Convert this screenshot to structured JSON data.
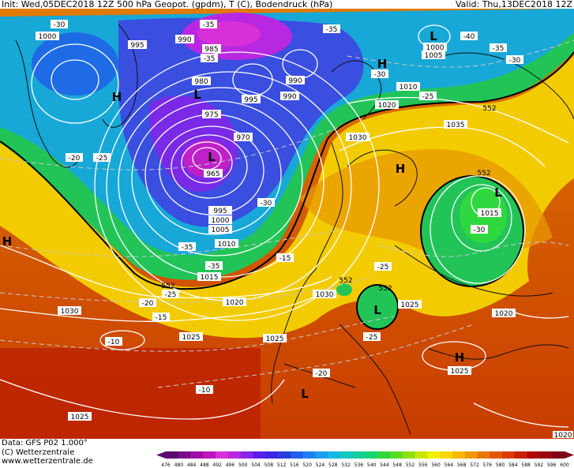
{
  "header": {
    "left": "Init: Wed,05DEC2018 12Z 500 hPa Geopot. (gpdm), T (C), Bodendruck (hPa)",
    "right": "Valid: Thu,13DEC2018 12Z"
  },
  "credits": {
    "line1": "Data: GFS P02 1.000°",
    "line2": "(C) Wetterzentrale",
    "line3": "www.wetterzentrale.de"
  },
  "colorbar": {
    "ticks": [
      "476",
      "480",
      "484",
      "488",
      "492",
      "496",
      "500",
      "504",
      "508",
      "512",
      "516",
      "520",
      "524",
      "528",
      "532",
      "536",
      "540",
      "544",
      "548",
      "552",
      "556",
      "560",
      "564",
      "568",
      "572",
      "576",
      "580",
      "584",
      "588",
      "592",
      "596",
      "600"
    ],
    "colors": [
      "#5a0a6e",
      "#7a0c8c",
      "#a010a8",
      "#c018c0",
      "#d830d8",
      "#b828e0",
      "#8a24e6",
      "#5c20e8",
      "#3a28e4",
      "#2a3ee0",
      "#2060e8",
      "#1c80f0",
      "#18a0f0",
      "#14b8e0",
      "#10c8c0",
      "#10d098",
      "#18d470",
      "#30d840",
      "#58dc20",
      "#90e010",
      "#c8e800",
      "#f0f000",
      "#f8d800",
      "#f8b800",
      "#f09800",
      "#e87800",
      "#e05800",
      "#d83c00",
      "#c82000",
      "#b00800",
      "#980010",
      "#800018"
    ]
  },
  "pressure_labels": [
    "1000",
    "995",
    "990",
    "985",
    "980",
    "975",
    "970",
    "965",
    "995",
    "1000",
    "1005",
    "1010",
    "1015",
    "990",
    "995",
    "990",
    "1000",
    "1005",
    "1010",
    "1020",
    "1035",
    "1030",
    "1015",
    "1030",
    "1020",
    "1020",
    "1025",
    "1025",
    "1025",
    "1020",
    "1030",
    "1025",
    "1025"
  ],
  "temp_labels": [
    "-30",
    "-35",
    "-35",
    "-35",
    "-40",
    "-35",
    "-30",
    "-25",
    "-20",
    "-25",
    "-30",
    "-35",
    "-35",
    "-15",
    "-25",
    "-25",
    "-20",
    "-15",
    "-10",
    "-10",
    "-30",
    "-30",
    "-25",
    "-20"
  ],
  "geo_labels": [
    "552",
    "552",
    "552",
    "552",
    "552"
  ],
  "centers": [
    "H",
    "H",
    "H",
    "H",
    "H",
    "L",
    "L",
    "L",
    "L",
    "L",
    "L"
  ]
}
